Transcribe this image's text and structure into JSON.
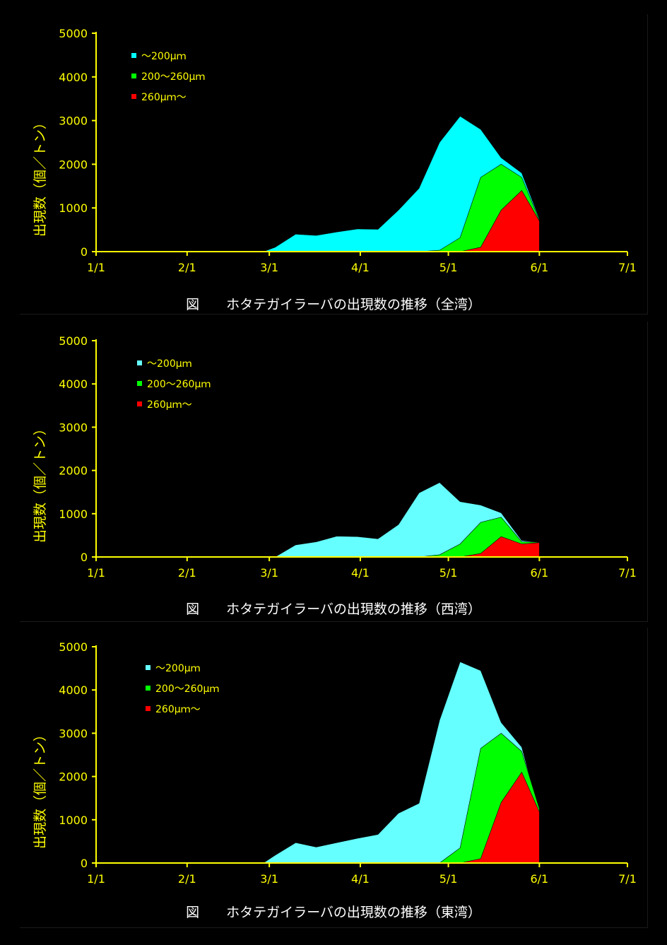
{
  "colors": {
    "axis": "#ffff00",
    "background": "#000000",
    "cyan": "#00ffff",
    "lightcyan": "#66ffff",
    "green": "#00ff00",
    "red": "#ff0000",
    "caption": "#ffffff"
  },
  "chart_data": [
    {
      "type": "area",
      "title": "図　　ホタテガイラーバの出現数の推移（全湾）",
      "ylabel": "出現数（個／トン）",
      "xlabel": "",
      "xlim": [
        0,
        181
      ],
      "ylim": [
        0,
        5000
      ],
      "yticks": [
        "0",
        "1000",
        "2000",
        "3000",
        "4000",
        "5000"
      ],
      "xticks": [
        {
          "label": "1/1",
          "day": 0
        },
        {
          "label": "2/1",
          "day": 31
        },
        {
          "label": "3/1",
          "day": 59
        },
        {
          "label": "4/1",
          "day": 90
        },
        {
          "label": "5/1",
          "day": 120
        },
        {
          "label": "6/1",
          "day": 151
        },
        {
          "label": "7/1",
          "day": 181
        }
      ],
      "legend": "top-left",
      "series": [
        {
          "name": "～200μｍ",
          "color": "#00ffff",
          "x": [
            55,
            57,
            61,
            68,
            75,
            82,
            89,
            96,
            103,
            110,
            117,
            124,
            131,
            138,
            145,
            151
          ],
          "values": [
            0,
            0,
            100,
            400,
            370,
            450,
            520,
            510,
            950,
            1450,
            2500,
            3100,
            2800,
            2150,
            1800,
            750
          ]
        },
        {
          "name": "200～260μｍ",
          "color": "#00ff00",
          "x": [
            110,
            117,
            124,
            131,
            138,
            145,
            151
          ],
          "values": [
            0,
            30,
            320,
            1700,
            2000,
            1700,
            720
          ]
        },
        {
          "name": "260μｍ～",
          "color": "#ff0000",
          "x": [
            124,
            131,
            138,
            145,
            151
          ],
          "values": [
            0,
            100,
            950,
            1400,
            700
          ]
        }
      ]
    },
    {
      "type": "area",
      "title": "図　　ホタテガイラーバの出現数の推移（西湾）",
      "ylabel": "出現数（個／トン）",
      "xlabel": "",
      "xlim": [
        0,
        181
      ],
      "ylim": [
        0,
        5000
      ],
      "yticks": [
        "0",
        "1000",
        "2000",
        "3000",
        "4000",
        "5000"
      ],
      "xticks": [
        {
          "label": "1/1",
          "day": 0
        },
        {
          "label": "2/1",
          "day": 31
        },
        {
          "label": "3/1",
          "day": 59
        },
        {
          "label": "4/1",
          "day": 90
        },
        {
          "label": "5/1",
          "day": 120
        },
        {
          "label": "6/1",
          "day": 151
        },
        {
          "label": "7/1",
          "day": 181
        }
      ],
      "legend": "top-left",
      "series": [
        {
          "name": "～200μｍ",
          "color": "#66ffff",
          "x": [
            61,
            68,
            75,
            82,
            89,
            96,
            103,
            110,
            117,
            124,
            131,
            138,
            145,
            151
          ],
          "values": [
            0,
            280,
            350,
            480,
            470,
            420,
            750,
            1480,
            1720,
            1280,
            1200,
            1020,
            380,
            340
          ]
        },
        {
          "name": "200～260μｍ",
          "color": "#00ff00",
          "x": [
            110,
            117,
            124,
            131,
            138,
            145,
            151
          ],
          "values": [
            0,
            50,
            300,
            800,
            920,
            350,
            340
          ]
        },
        {
          "name": "260μｍ～",
          "color": "#ff0000",
          "x": [
            124,
            131,
            138,
            145,
            151
          ],
          "values": [
            0,
            80,
            470,
            300,
            330
          ]
        }
      ]
    },
    {
      "type": "area",
      "title": "図　　ホタテガイラーバの出現数の推移（東湾）",
      "ylabel": "出現数（個／トン）",
      "xlabel": "",
      "xlim": [
        0,
        181
      ],
      "ylim": [
        0,
        5000
      ],
      "yticks": [
        "0",
        "1000",
        "2000",
        "3000",
        "4000",
        "5000"
      ],
      "xticks": [
        {
          "label": "1/1",
          "day": 0
        },
        {
          "label": "2/1",
          "day": 31
        },
        {
          "label": "3/1",
          "day": 59
        },
        {
          "label": "4/1",
          "day": 90
        },
        {
          "label": "5/1",
          "day": 120
        },
        {
          "label": "6/1",
          "day": 151
        },
        {
          "label": "7/1",
          "day": 181
        }
      ],
      "legend": "top-left",
      "series": [
        {
          "name": "～200μｍ",
          "color": "#66ffff",
          "x": [
            55,
            57,
            61,
            68,
            75,
            82,
            89,
            96,
            103,
            110,
            117,
            124,
            131,
            138,
            145,
            151
          ],
          "values": [
            0,
            0,
            180,
            470,
            370,
            470,
            570,
            660,
            1150,
            1380,
            3300,
            4650,
            4450,
            3250,
            2680,
            1180
          ]
        },
        {
          "name": "200～260μｍ",
          "color": "#00ff00",
          "x": [
            117,
            124,
            131,
            138,
            145,
            151
          ],
          "values": [
            0,
            350,
            2650,
            3000,
            2580,
            1250
          ]
        },
        {
          "name": "260μｍ～",
          "color": "#ff0000",
          "x": [
            124,
            131,
            138,
            145,
            151
          ],
          "values": [
            0,
            100,
            1400,
            2100,
            1180
          ]
        }
      ]
    }
  ]
}
